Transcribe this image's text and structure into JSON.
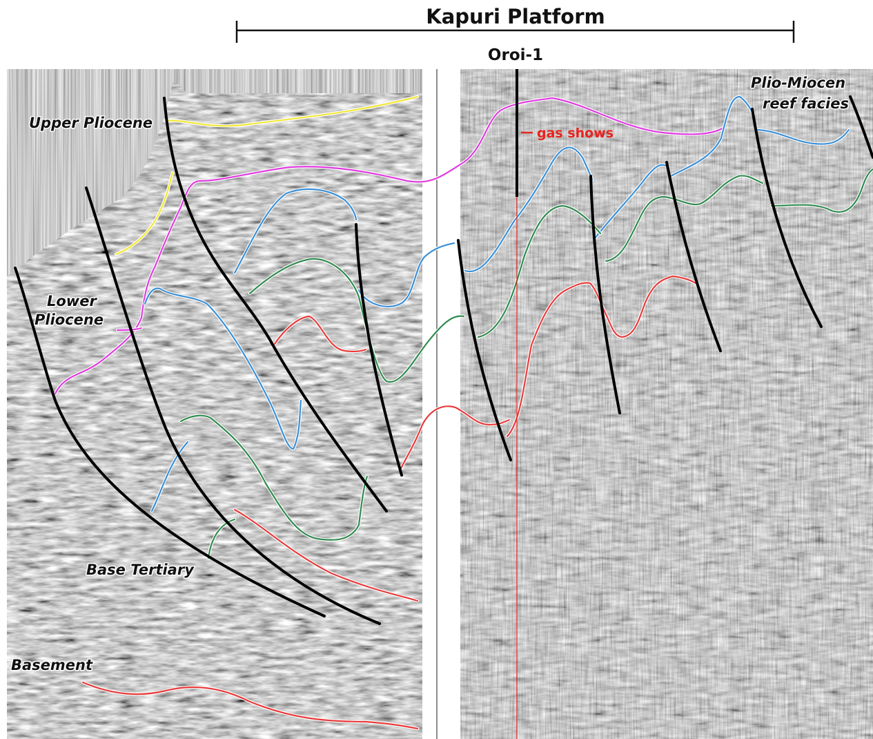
{
  "header": {
    "title": "Kapuri Platform",
    "well_name": "Oroi-1"
  },
  "labels": {
    "upper_pliocene": "Upper Pliocene",
    "lower_pliocene_line1": "Lower",
    "lower_pliocene_line2": "Pliocene",
    "base_tertiary": "Base Tertiary",
    "basement": "Basement",
    "reef_line1": "Plio-Miocen",
    "reef_line2": "reef facies",
    "gas_shows": "gas shows"
  },
  "colors": {
    "upper_pliocene": "#f2e83a",
    "lower_pliocene": "#e03be0",
    "blue_horizon": "#3a8fd6",
    "green_horizon": "#2f8a4e",
    "red_horizon": "#e83a3a",
    "faults": "#000000",
    "well": "#000000",
    "gas_shows": "#e8231f"
  }
}
